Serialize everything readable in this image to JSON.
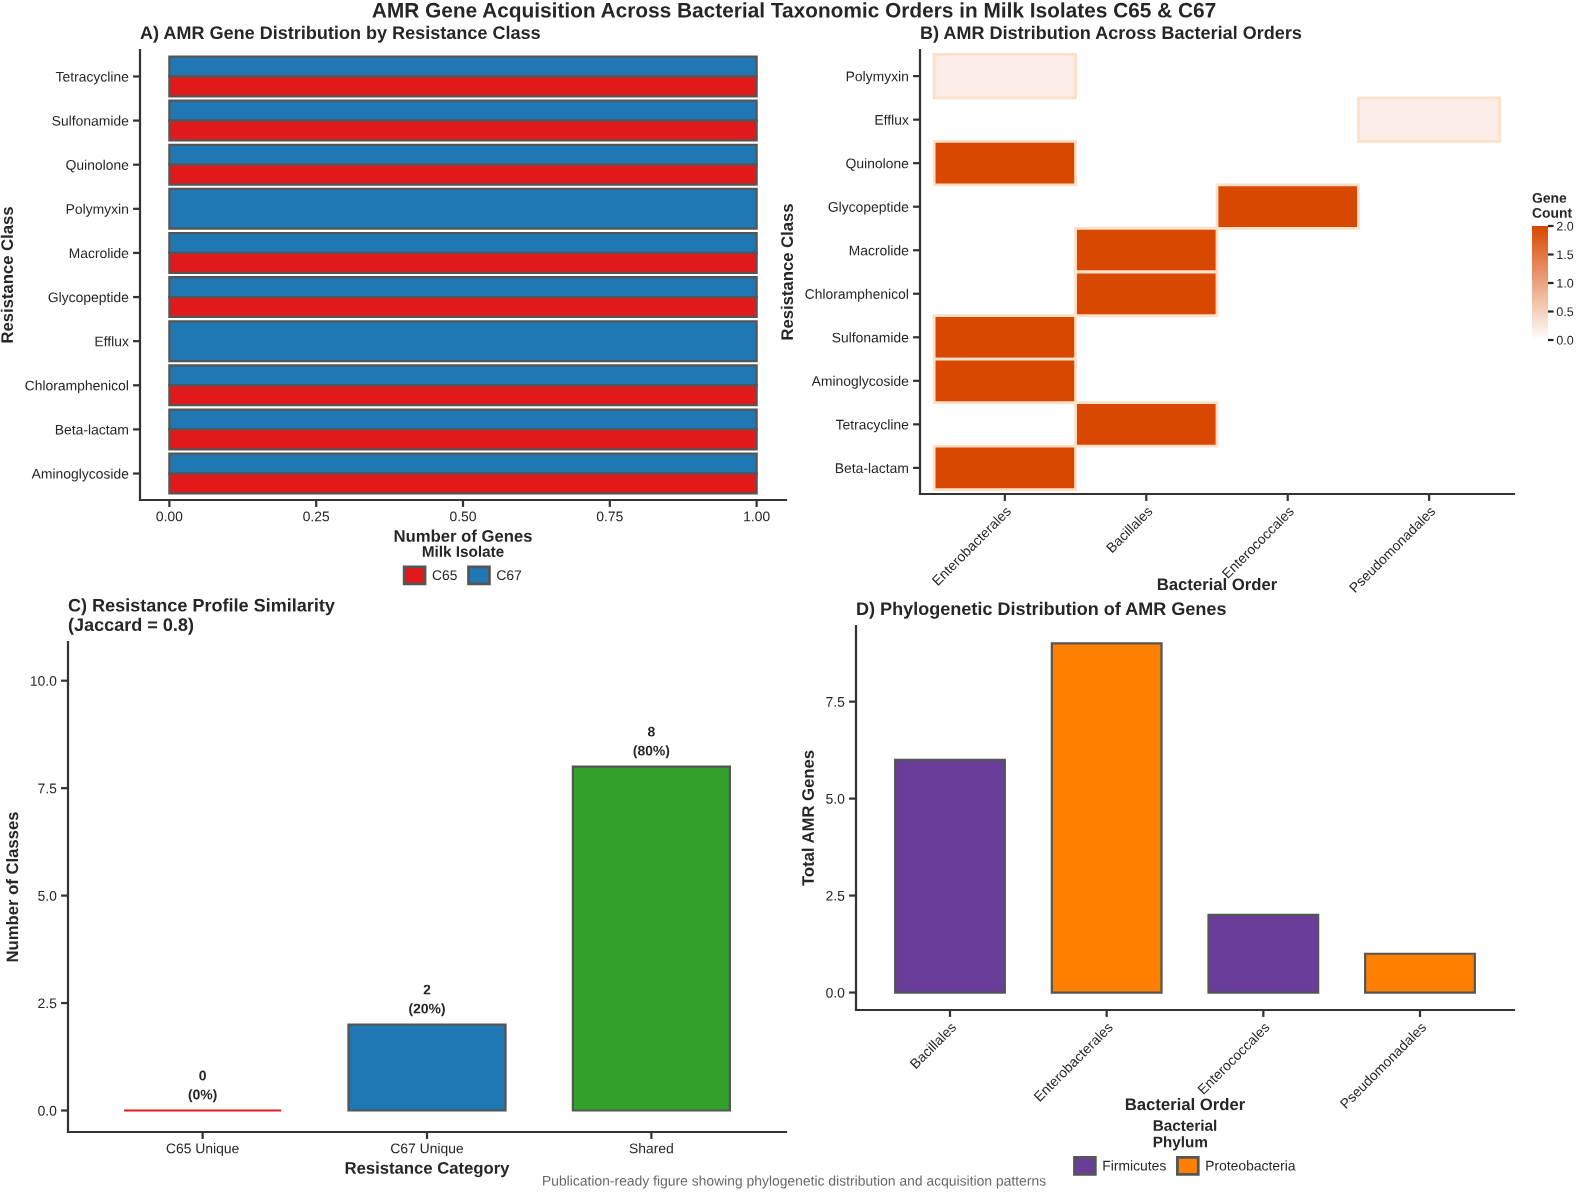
{
  "chart_data": [
    {
      "type": "bar",
      "orientation": "horizontal",
      "title": "A) AMR Gene Distribution by Resistance Class",
      "xlabel": "Number of Genes",
      "ylabel": "Resistance Class",
      "legend_title": "Milk Isolate",
      "legend": "bottom",
      "annotations": [
        "AMR Gene Acquisition Across Bacterial Taxonomic Orders in Milk Isolates C65 & C67"
      ],
      "categories": [
        "Tetracycline",
        "Sulfonamide",
        "Quinolone",
        "Polymyxin",
        "Macrolide",
        "Glycopeptide",
        "Efflux",
        "Chloramphenicol",
        "Beta-lactam",
        "Aminoglycoside"
      ],
      "series": [
        {
          "name": "C65",
          "color": "#e31a1c",
          "values": [
            1,
            1,
            1,
            null,
            1,
            1,
            null,
            1,
            1,
            1
          ]
        },
        {
          "name": "C67",
          "color": "#1f78b4",
          "values": [
            1,
            1,
            1,
            1,
            1,
            1,
            1,
            1,
            1,
            1
          ]
        }
      ],
      "xlim": [
        -0.05,
        1.05
      ],
      "xticks": [
        {
          "value": 0,
          "label": "0.00"
        },
        {
          "value": 0.25,
          "label": "0.25"
        },
        {
          "value": 0.5,
          "label": "0.50"
        },
        {
          "value": 0.75,
          "label": "0.75"
        },
        {
          "value": 1,
          "label": "1.00"
        }
      ]
    },
    {
      "type": "heatmap",
      "title": "B) AMR Distribution Across Bacterial Orders",
      "xlabel": "Bacterial Order",
      "ylabel": "Resistance Class",
      "clabel": "Gene\nCount",
      "categories": [
        "Enterobacterales",
        "Bacillales",
        "Enterococcales",
        "Pseudomonadales"
      ],
      "y_categories": [
        "Polymyxin",
        "Efflux",
        "Quinolone",
        "Glycopeptide",
        "Macrolide",
        "Chloramphenicol",
        "Sulfonamide",
        "Aminoglycoside",
        "Tetracycline",
        "Beta-lactam"
      ],
      "cells": [
        [
          0.2,
          null,
          null,
          null
        ],
        [
          null,
          null,
          null,
          0.2
        ],
        [
          2,
          null,
          null,
          null
        ],
        [
          null,
          null,
          2,
          null
        ],
        [
          null,
          2,
          null,
          null
        ],
        [
          null,
          2,
          null,
          null
        ],
        [
          2,
          null,
          null,
          null
        ],
        [
          2,
          null,
          null,
          null
        ],
        [
          null,
          2,
          null,
          null
        ],
        [
          2,
          null,
          null,
          null
        ]
      ],
      "clim": [
        0,
        2
      ],
      "cticks": [
        {
          "value": 0,
          "label": "0.0"
        },
        {
          "value": 0.5,
          "label": "0.5"
        },
        {
          "value": 1,
          "label": "1.0"
        },
        {
          "value": 1.5,
          "label": "1.5"
        },
        {
          "value": 2,
          "label": "2.0"
        }
      ]
    },
    {
      "type": "bar",
      "title": "C) Resistance Profile Similarity\n(Jaccard = 0.8)",
      "xlabel": "Resistance Category",
      "ylabel": "Number of Classes",
      "categories": [
        "C65 Unique",
        "C67 Unique",
        "Shared"
      ],
      "values": [
        0,
        2,
        8
      ],
      "colors": [
        "#e31a1c",
        "#1f78b4",
        "#33a02c"
      ],
      "value_labels": [
        "0\n(0%)",
        "2\n(20%)",
        "8\n(80%)"
      ],
      "ylim": [
        -0.5,
        10.9
      ],
      "yticks": [
        {
          "value": 0,
          "label": "0.0"
        },
        {
          "value": 2.5,
          "label": "2.5"
        },
        {
          "value": 5,
          "label": "5.0"
        },
        {
          "value": 7.5,
          "label": "7.5"
        },
        {
          "value": 10,
          "label": "10.0"
        }
      ]
    },
    {
      "type": "bar",
      "stacked": true,
      "title": "D) Phylogenetic Distribution of AMR Genes",
      "xlabel": "Bacterial Order",
      "ylabel": "Total AMR Genes",
      "legend_title": "Bacterial\nPhylum",
      "legend": "bottom",
      "annotations": [
        "Publication-ready figure showing phylogenetic distribution and acquisition patterns"
      ],
      "categories": [
        "Bacillales",
        "Enterobacterales",
        "Enterococcales",
        "Pseudomonadales"
      ],
      "series": [
        {
          "name": "Firmicutes",
          "color": "#6a3d9a",
          "values": [
            6,
            null,
            2,
            null
          ]
        },
        {
          "name": "Proteobacteria",
          "color": "#ff7f00",
          "values": [
            null,
            9,
            null,
            1
          ]
        }
      ],
      "ylim": [
        -0.45,
        9.45
      ],
      "yticks": [
        {
          "value": 0,
          "label": "0.0"
        },
        {
          "value": 2.5,
          "label": "2.5"
        },
        {
          "value": 5,
          "label": "5.0"
        },
        {
          "value": 7.5,
          "label": "7.5"
        }
      ]
    }
  ]
}
